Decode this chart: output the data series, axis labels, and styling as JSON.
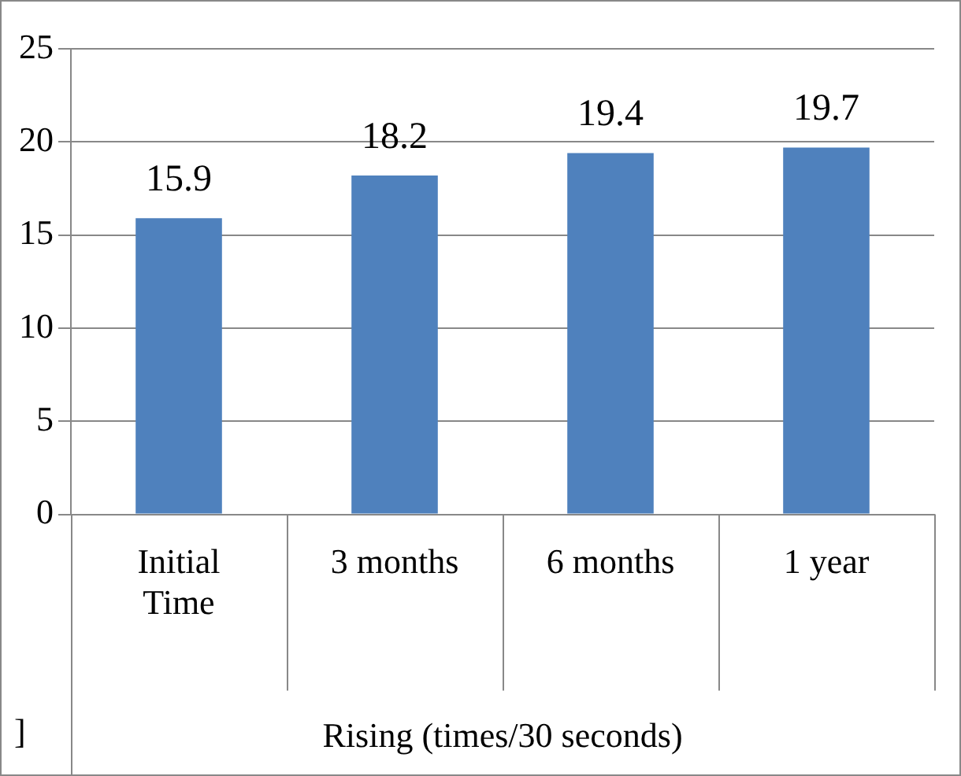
{
  "chart_data": {
    "type": "bar",
    "xlabel": "Rising (times/30 seconds)",
    "categories": [
      "Initial Time",
      "3 months",
      "6 months",
      "1 year"
    ],
    "values": [
      15.9,
      18.2,
      19.4,
      19.7
    ],
    "color": "#4f81bd",
    "ylim": [
      0,
      25
    ],
    "yticks": [
      0,
      5,
      10,
      15,
      20,
      25
    ],
    "grid": "y",
    "legend": false,
    "data_labels": true,
    "annotations": [
      "]"
    ]
  }
}
